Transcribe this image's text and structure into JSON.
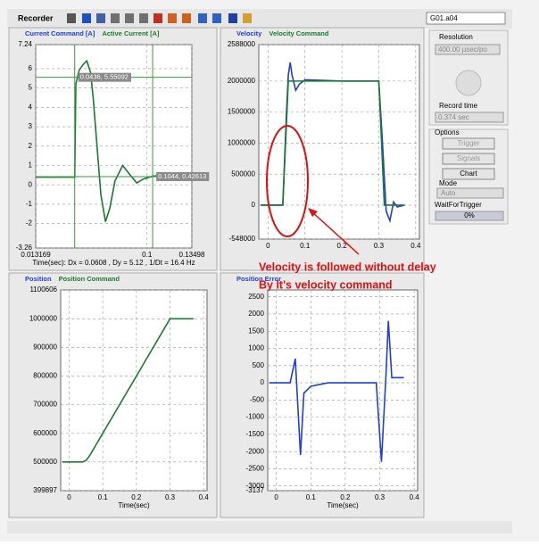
{
  "toolbar": {
    "title": "Recorder",
    "selector": "G01.a04"
  },
  "side_panel": {
    "resolution_label": "Resolution",
    "resolution_value": "400.00 µsec/po",
    "record_time_label": "Record time",
    "record_time_value": "0.374 sec",
    "options_label": "Options",
    "trigger_button": "Trigger",
    "signals_button": "Signals",
    "chart_button": "Chart",
    "mode_label": "Mode",
    "mode_value": "Auto",
    "wait_label": "WaitForTrigger",
    "progress": "0%"
  },
  "annotations": {
    "line1": "Velocity is followed without delay",
    "line2": "By It's velocity command"
  },
  "chart_data": [
    {
      "type": "line",
      "xlim": [
        0.013169,
        0.13498
      ],
      "xticks": [
        0.013169,
        0.1,
        0.13498
      ],
      "ylim": [
        -3.26,
        7.24
      ],
      "yticks": [
        7.24,
        6,
        5,
        4,
        3,
        2,
        1,
        0,
        -1,
        -2,
        -3.26
      ],
      "grid": true,
      "x_label": "Time(sec): Dx = 0.0608 , Dy = 5.12 , 1/Dt = 16.4 Hz",
      "cursors": [
        {
          "x": 0.0436,
          "y": 5.55092,
          "label": "0.0436, 5.55092"
        },
        {
          "x": 0.1044,
          "y": 0.42613,
          "label": "0.1044, 0.42613"
        }
      ],
      "series": [
        {
          "name": "Current Command [A]",
          "color": "#1f3fd8"
        },
        {
          "name": "Active Current [A]",
          "color": "#1a7a2e",
          "x": [
            0.013169,
            0.0436,
            0.0445,
            0.047,
            0.05,
            0.053,
            0.056,
            0.058,
            0.061,
            0.064,
            0.0676,
            0.071,
            0.075,
            0.081,
            0.087,
            0.092,
            0.097,
            0.1044,
            0.115,
            0.125,
            0.13498
          ],
          "values": [
            0.4,
            0.4,
            5.2,
            5.9,
            6.2,
            6.4,
            5.8,
            4.5,
            2,
            -0.5,
            -1.9,
            -1.2,
            0.2,
            1.0,
            0.5,
            0.1,
            0.3,
            0.45,
            0.5,
            0.4,
            0.35
          ]
        }
      ]
    },
    {
      "type": "line",
      "xlim": [
        -0.025,
        0.41
      ],
      "xticks": [
        0,
        0.1,
        0.2,
        0.3,
        0.4
      ],
      "ylim": [
        -548000,
        2588000
      ],
      "yticks": [
        2588000,
        2000000,
        1500000,
        1000000,
        500000,
        0,
        -548000
      ],
      "grid": true,
      "series": [
        {
          "name": "Velocity",
          "color": "#1f3fd8",
          "x": [
            -0.02,
            0.04,
            0.05,
            0.055,
            0.06,
            0.065,
            0.075,
            0.085,
            0.1,
            0.2,
            0.3,
            0.31,
            0.32,
            0.33,
            0.34,
            0.35,
            0.37
          ],
          "values": [
            0,
            0,
            1500000,
            2100000,
            2300000,
            2100000,
            1850000,
            1950000,
            2020000,
            2000000,
            2000000,
            1000000,
            -100000,
            -250000,
            50000,
            -30000,
            0
          ]
        },
        {
          "name": "Velocity Command",
          "color": "#1a7a2e",
          "x": [
            -0.02,
            0.04,
            0.055,
            0.3,
            0.315,
            0.37
          ],
          "values": [
            0,
            0,
            2000000,
            2000000,
            0,
            0
          ]
        }
      ]
    },
    {
      "type": "line",
      "xlim": [
        -0.025,
        0.41
      ],
      "xticks": [
        0,
        0.1,
        0.2,
        0.3,
        0.4
      ],
      "ylim": [
        399897,
        1100606
      ],
      "yticks": [
        1100606,
        1000000,
        900000,
        800000,
        700000,
        600000,
        500000,
        399897
      ],
      "grid": true,
      "x_label": "Time(sec)",
      "series": [
        {
          "name": "Position",
          "color": "#1f3fd8"
        },
        {
          "name": "Position Command",
          "color": "#1a7a2e",
          "x": [
            -0.02,
            0.04,
            0.05,
            0.06,
            0.3,
            0.37
          ],
          "values": [
            500000,
            500000,
            505000,
            520000,
            1000000,
            1000000
          ]
        }
      ]
    },
    {
      "type": "line",
      "xlim": [
        -0.025,
        0.41
      ],
      "xticks": [
        0,
        0.1,
        0.2,
        0.3,
        0.4
      ],
      "ylim": [
        -3137,
        2700
      ],
      "yticks": [
        2500,
        2000,
        1500,
        1000,
        500,
        0,
        -500,
        -1000,
        -1500,
        -2000,
        -2500,
        -3000,
        -3137
      ],
      "grid": true,
      "x_label": "Time(sec)",
      "series": [
        {
          "name": "Position Error",
          "color": "#1f3fd8",
          "x": [
            -0.02,
            0.04,
            0.055,
            0.062,
            0.07,
            0.08,
            0.1,
            0.15,
            0.29,
            0.305,
            0.318,
            0.325,
            0.335,
            0.37
          ],
          "values": [
            0,
            0,
            700,
            -600,
            -2100,
            -300,
            -100,
            0,
            0,
            -2300,
            200,
            1800,
            150,
            150
          ]
        }
      ]
    }
  ]
}
